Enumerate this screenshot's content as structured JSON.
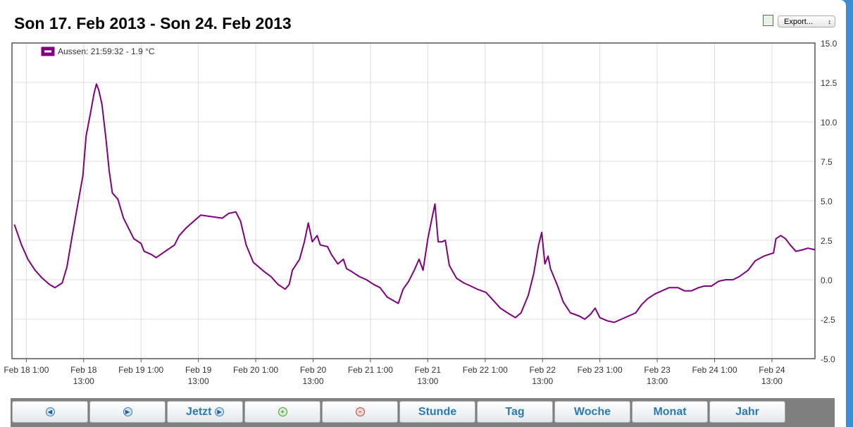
{
  "header": {
    "title": "Son 17. Feb 2013 - Son 24. Feb 2013"
  },
  "export": {
    "label": "Export..."
  },
  "toolbar": {
    "buttons": [
      "Jetzt",
      "Stunde",
      "Tag",
      "Woche",
      "Monat",
      "Jahr"
    ]
  },
  "chart_data": {
    "type": "line",
    "legend": "top-left",
    "grid": true,
    "xlim": [
      "2013-02-17T22:00",
      "2013-02-24T22:00"
    ],
    "ylim": [
      -5,
      15
    ],
    "yticks": [
      {
        "value": -5,
        "label": "-5.0"
      },
      {
        "value": -2.5,
        "label": "-2.5"
      },
      {
        "value": 0,
        "label": "0.0"
      },
      {
        "value": 2.5,
        "label": "2.5"
      },
      {
        "value": 5,
        "label": "5.0"
      },
      {
        "value": 7.5,
        "label": "7.5"
      },
      {
        "value": 10,
        "label": "10.0"
      },
      {
        "value": 12.5,
        "label": "12.5"
      },
      {
        "value": 15,
        "label": "15.0"
      }
    ],
    "xticks": [
      {
        "value": "2013-02-18T01:00",
        "label": "Feb 18 1:00"
      },
      {
        "value": "2013-02-18T13:00",
        "label": "Feb 18\n13:00"
      },
      {
        "value": "2013-02-19T01:00",
        "label": "Feb 19 1:00"
      },
      {
        "value": "2013-02-19T13:00",
        "label": "Feb 19\n13:00"
      },
      {
        "value": "2013-02-20T01:00",
        "label": "Feb 20 1:00"
      },
      {
        "value": "2013-02-20T13:00",
        "label": "Feb 20\n13:00"
      },
      {
        "value": "2013-02-21T01:00",
        "label": "Feb 21 1:00"
      },
      {
        "value": "2013-02-21T13:00",
        "label": "Feb 21\n13:00"
      },
      {
        "value": "2013-02-22T01:00",
        "label": "Feb 22 1:00"
      },
      {
        "value": "2013-02-22T13:00",
        "label": "Feb 22\n13:00"
      },
      {
        "value": "2013-02-23T01:00",
        "label": "Feb 23 1:00"
      },
      {
        "value": "2013-02-23T13:00",
        "label": "Feb 23\n13:00"
      },
      {
        "value": "2013-02-24T01:00",
        "label": "Feb 24 1:00"
      },
      {
        "value": "2013-02-24T13:00",
        "label": "Feb 24\n13:00"
      }
    ],
    "x": [
      "2013-02-17T22:30",
      "2013-02-18T00:00",
      "2013-02-18T01:20",
      "2013-02-18T02:50",
      "2013-02-18T04:20",
      "2013-02-18T05:50",
      "2013-02-18T07:00",
      "2013-02-18T08:30",
      "2013-02-18T09:30",
      "2013-02-18T10:30",
      "2013-02-18T11:40",
      "2013-02-18T12:50",
      "2013-02-18T13:30",
      "2013-02-18T14:20",
      "2013-02-18T15:10",
      "2013-02-18T15:40",
      "2013-02-18T16:10",
      "2013-02-18T16:50",
      "2013-02-18T17:40",
      "2013-02-18T18:20",
      "2013-02-18T19:00",
      "2013-02-18T20:10",
      "2013-02-18T21:20",
      "2013-02-18T22:20",
      "2013-02-18T23:30",
      "2013-02-19T01:00",
      "2013-02-19T01:40",
      "2013-02-19T03:10",
      "2013-02-19T04:10",
      "2013-02-19T08:00",
      "2013-02-19T09:00",
      "2013-02-19T10:30",
      "2013-02-19T12:00",
      "2013-02-19T13:30",
      "2013-02-19T15:40",
      "2013-02-19T18:00",
      "2013-02-19T19:20",
      "2013-02-19T20:50",
      "2013-02-19T21:50",
      "2013-02-19T23:00",
      "2013-02-20T00:30",
      "2013-02-20T02:50",
      "2013-02-20T04:10",
      "2013-02-20T05:40",
      "2013-02-20T07:10",
      "2013-02-20T08:00",
      "2013-02-20T08:40",
      "2013-02-20T10:10",
      "2013-02-20T11:10",
      "2013-02-20T12:00",
      "2013-02-20T12:50",
      "2013-02-20T13:50",
      "2013-02-20T14:30",
      "2013-02-20T16:00",
      "2013-02-20T16:50",
      "2013-02-20T18:10",
      "2013-02-20T19:20",
      "2013-02-20T20:00",
      "2013-02-20T21:10",
      "2013-02-20T22:40",
      "2013-02-21T00:10",
      "2013-02-21T01:40",
      "2013-02-21T03:00",
      "2013-02-21T04:30",
      "2013-02-21T05:40",
      "2013-02-21T06:50",
      "2013-02-21T07:50",
      "2013-02-21T09:00",
      "2013-02-21T10:10",
      "2013-02-21T11:10",
      "2013-02-21T12:00",
      "2013-02-21T13:00",
      "2013-02-21T13:40",
      "2013-02-21T14:30",
      "2013-02-21T15:10",
      "2013-02-21T16:00",
      "2013-02-21T16:40",
      "2013-02-21T17:30",
      "2013-02-21T19:00",
      "2013-02-21T20:30",
      "2013-02-21T22:00",
      "2013-02-21T23:20",
      "2013-02-22T01:10",
      "2013-02-22T02:40",
      "2013-02-22T04:10",
      "2013-02-22T05:40",
      "2013-02-22T07:20",
      "2013-02-22T08:30",
      "2013-02-22T10:00",
      "2013-02-22T11:10",
      "2013-02-22T12:10",
      "2013-02-22T12:50",
      "2013-02-22T13:30",
      "2013-02-22T14:10",
      "2013-02-22T14:40",
      "2013-02-22T16:10",
      "2013-02-22T17:20",
      "2013-02-22T18:50",
      "2013-02-22T20:40",
      "2013-02-22T21:50",
      "2013-02-22T23:00",
      "2013-02-23T00:00",
      "2013-02-23T01:00",
      "2013-02-23T02:30",
      "2013-02-23T04:00",
      "2013-02-23T05:30",
      "2013-02-23T07:00",
      "2013-02-23T08:30",
      "2013-02-23T09:40",
      "2013-02-23T11:00",
      "2013-02-23T12:30",
      "2013-02-23T14:00",
      "2013-02-23T15:30",
      "2013-02-23T17:20",
      "2013-02-23T18:40",
      "2013-02-23T20:10",
      "2013-02-23T21:40",
      "2013-02-23T22:50",
      "2013-02-24T00:20",
      "2013-02-24T01:50",
      "2013-02-24T03:20",
      "2013-02-24T04:50",
      "2013-02-24T06:10",
      "2013-02-24T08:00",
      "2013-02-24T09:30",
      "2013-02-24T11:20",
      "2013-02-24T13:20",
      "2013-02-24T13:50",
      "2013-02-24T14:50",
      "2013-02-24T15:50",
      "2013-02-24T16:50",
      "2013-02-24T18:00",
      "2013-02-24T19:30",
      "2013-02-24T20:30",
      "2013-02-24T21:59:32"
    ],
    "series": [
      {
        "name": "Aussen: 21:59:32 - 1.9 °C",
        "color": "#800080",
        "values": [
          3.5,
          2.2,
          1.3,
          0.6,
          0.1,
          -0.3,
          -0.5,
          -0.2,
          0.8,
          2.6,
          4.6,
          6.6,
          9.1,
          10.4,
          11.8,
          12.4,
          12.0,
          11.1,
          8.9,
          6.9,
          5.5,
          5.1,
          3.9,
          3.3,
          2.6,
          2.3,
          1.8,
          1.6,
          1.4,
          2.2,
          2.8,
          3.3,
          3.7,
          4.1,
          4.0,
          3.9,
          4.2,
          4.3,
          3.7,
          2.2,
          1.1,
          0.5,
          0.2,
          -0.3,
          -0.6,
          -0.3,
          0.6,
          1.3,
          2.4,
          3.6,
          2.4,
          2.8,
          2.2,
          2.1,
          1.6,
          1.0,
          1.3,
          0.7,
          0.5,
          0.2,
          0.0,
          -0.3,
          -0.5,
          -1.1,
          -1.3,
          -1.5,
          -0.6,
          -0.1,
          0.6,
          1.3,
          0.6,
          2.6,
          3.6,
          4.8,
          2.4,
          2.4,
          2.5,
          0.9,
          0.1,
          -0.2,
          -0.4,
          -0.6,
          -0.8,
          -1.3,
          -1.8,
          -2.1,
          -2.4,
          -2.1,
          -1.0,
          0.4,
          2.2,
          3.0,
          1.0,
          1.5,
          0.7,
          -0.4,
          -1.4,
          -2.1,
          -2.3,
          -2.5,
          -2.2,
          -1.8,
          -2.4,
          -2.6,
          -2.7,
          -2.5,
          -2.3,
          -2.1,
          -1.6,
          -1.2,
          -0.9,
          -0.7,
          -0.5,
          -0.5,
          -0.7,
          -0.7,
          -0.5,
          -0.4,
          -0.4,
          -0.1,
          0.0,
          0.0,
          0.2,
          0.6,
          1.2,
          1.5,
          1.7,
          2.6,
          2.8,
          2.6,
          2.2,
          1.8,
          1.9,
          2.0,
          1.9
        ]
      }
    ]
  }
}
